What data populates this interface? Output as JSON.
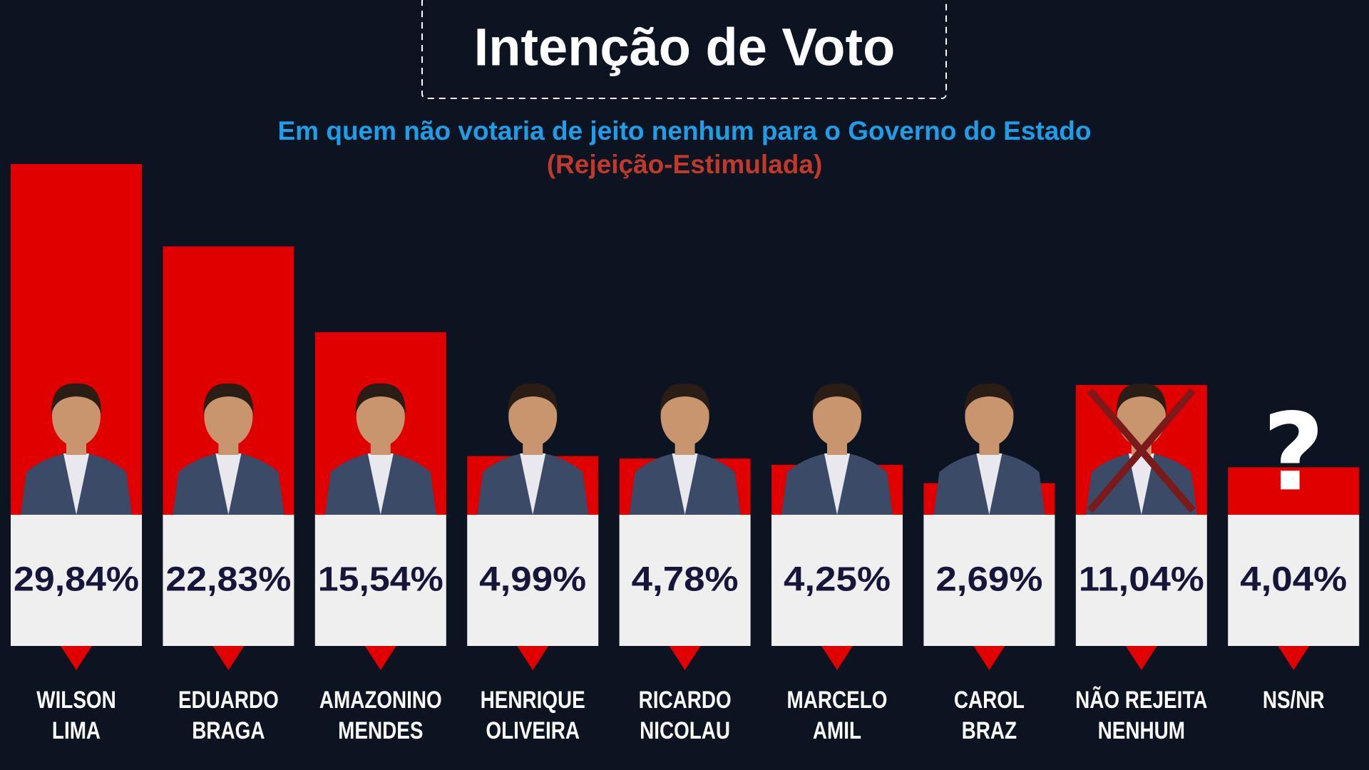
{
  "chart_data": {
    "type": "bar",
    "title": "Intenção de Voto",
    "subtitle": "Em quem não votaria de jeito nenhum para o Governo do Estado",
    "subtitle2": "(Rejeição-Estimulada)",
    "categories": [
      [
        "WILSON",
        "LIMA"
      ],
      [
        "EDUARDO",
        "BRAGA"
      ],
      [
        "AMAZONINO",
        "MENDES"
      ],
      [
        "HENRIQUE",
        "OLIVEIRA"
      ],
      [
        "RICARDO",
        "NICOLAU"
      ],
      [
        "MARCELO",
        "AMIL"
      ],
      [
        "CAROL",
        "BRAZ"
      ],
      [
        "NÃO REJEITA",
        "NENHUM"
      ],
      [
        "NS/NR"
      ]
    ],
    "values": [
      29.84,
      22.83,
      15.54,
      4.99,
      4.78,
      4.25,
      2.69,
      11.04,
      4.04
    ],
    "value_labels": [
      "29,84%",
      "22,83%",
      "15,54%",
      "4,99%",
      "4,78%",
      "4,25%",
      "2,69%",
      "11,04%",
      "4,04%"
    ],
    "color": "#e00000"
  }
}
